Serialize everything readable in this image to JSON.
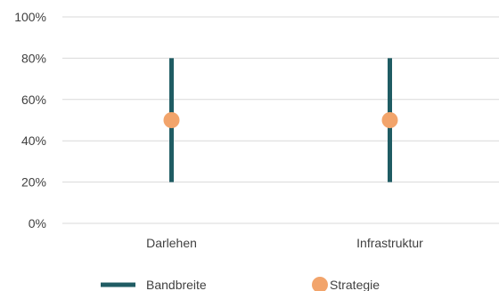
{
  "chart_data": {
    "type": "scatter",
    "title": "",
    "xlabel": "",
    "ylabel": "",
    "categories": [
      "Darlehen",
      "Infrastruktur"
    ],
    "ylim": [
      0,
      1
    ],
    "y_ticks": [
      0,
      0.2,
      0.4,
      0.6,
      0.8,
      1.0
    ],
    "y_tick_labels": [
      "0%",
      "20%",
      "40%",
      "60%",
      "80%",
      "100%"
    ],
    "grid": true,
    "legend_position": "bottom",
    "series": [
      {
        "name": "Bandbreite",
        "kind": "range",
        "color": "#1f5c63",
        "low": [
          0.2,
          0.2
        ],
        "high": [
          0.8,
          0.8
        ]
      },
      {
        "name": "Strategie",
        "kind": "point",
        "color": "#f2a46b",
        "values": [
          0.5,
          0.5
        ]
      }
    ]
  }
}
